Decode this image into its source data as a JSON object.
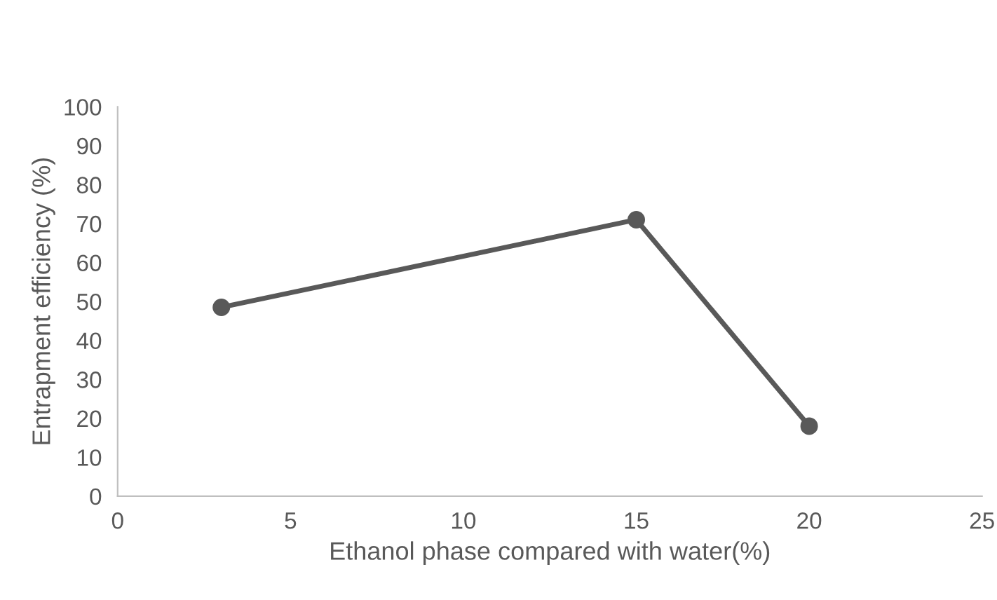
{
  "chart_data": {
    "type": "line",
    "xlabel": "Ethanol phase compared with water(%)",
    "ylabel": "Entrapment efficiency (%)",
    "x": [
      3,
      15,
      20
    ],
    "series": [
      {
        "color": "#595959",
        "values": [
          48.5,
          71,
          18
        ]
      }
    ],
    "xlim": [
      0,
      25
    ],
    "xticks": [
      0,
      5,
      10,
      15,
      20,
      25
    ],
    "ylim": [
      0,
      100
    ],
    "yticks": [
      0,
      10,
      20,
      30,
      40,
      50,
      60,
      70,
      80,
      90,
      100
    ],
    "marker": "circle",
    "line_style": "solid",
    "grid": false,
    "legend": false
  }
}
